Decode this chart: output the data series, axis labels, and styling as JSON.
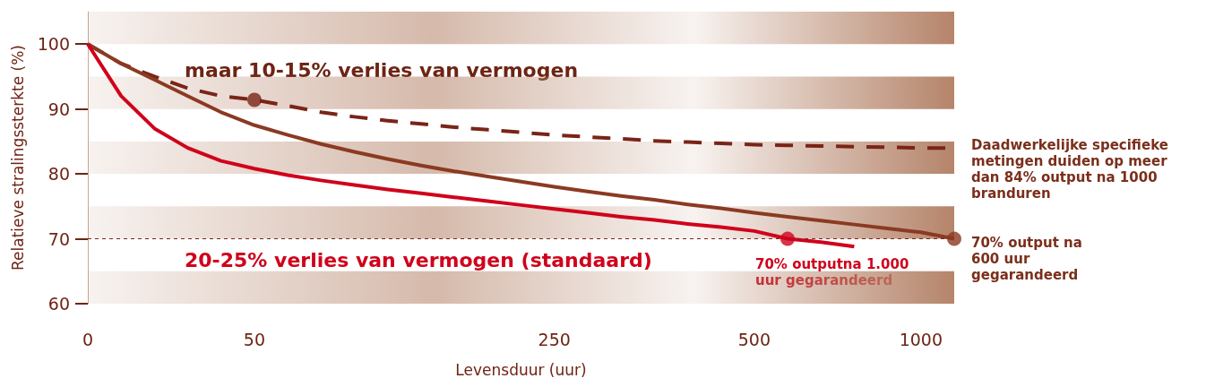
{
  "chart_data": {
    "type": "line",
    "xlabel": "Levensduur (uur)",
    "ylabel": "Relatieve stralingssterkte (%)",
    "categories": [
      "0",
      null,
      null,
      null,
      null,
      "50",
      null,
      null,
      null,
      null,
      null,
      null,
      null,
      null,
      "250",
      null,
      null,
      null,
      null,
      null,
      "500",
      null,
      null,
      null,
      null,
      "1000",
      null
    ],
    "ylim": [
      60,
      105
    ],
    "yticks": [
      60,
      70,
      80,
      90,
      100
    ],
    "grid": false,
    "marker": "none",
    "series": [
      {
        "color": "#7a2418",
        "line_style": "dashed",
        "values": [
          100,
          97,
          95,
          93.2,
          92,
          91.4,
          90.5,
          89.5,
          88.8,
          88.2,
          87.7,
          87.2,
          86.8,
          86.4,
          86,
          85.7,
          85.4,
          85.1,
          84.9,
          84.7,
          84.5,
          84.4,
          84.3,
          84.2,
          84.1,
          84,
          84
        ]
      },
      {
        "color": "#8b3a22",
        "line_style": "solid",
        "values": [
          100,
          97,
          94.5,
          92,
          89.5,
          87.5,
          86,
          84.6,
          83.4,
          82.3,
          81.3,
          80.4,
          79.6,
          78.8,
          78,
          77.3,
          76.6,
          76,
          75.3,
          74.7,
          74,
          73.4,
          72.8,
          72.2,
          71.6,
          71,
          70
        ]
      },
      {
        "color": "#d0021b",
        "line_style": "solid",
        "values": [
          100,
          92,
          87,
          84,
          82,
          80.8,
          79.8,
          79,
          78.3,
          77.6,
          77,
          76.4,
          75.8,
          75.2,
          74.6,
          74,
          73.4,
          72.9,
          72.3,
          71.8,
          71.2,
          70,
          69.5,
          68.8,
          null,
          null,
          null
        ]
      },
      {
        "type": "scatter",
        "color": "#7a2418",
        "marker": "circle",
        "values": [
          null,
          null,
          null,
          null,
          null,
          91.4,
          null,
          null,
          null,
          null,
          null,
          null,
          null,
          null,
          null,
          null,
          null,
          null,
          null,
          null,
          null,
          null,
          null,
          null,
          null,
          null,
          null
        ]
      },
      {
        "type": "scatter",
        "color": "#d0021b",
        "marker": "circle",
        "values": [
          null,
          null,
          null,
          null,
          null,
          null,
          null,
          null,
          null,
          null,
          null,
          null,
          null,
          null,
          null,
          null,
          null,
          null,
          null,
          null,
          null,
          70,
          null,
          null,
          null,
          null,
          null
        ]
      },
      {
        "type": "scatter",
        "color": "#8b3a22",
        "marker": "circle",
        "values": [
          null,
          null,
          null,
          null,
          null,
          null,
          null,
          null,
          null,
          null,
          null,
          null,
          null,
          null,
          null,
          null,
          null,
          null,
          null,
          null,
          null,
          null,
          null,
          null,
          null,
          null,
          70
        ]
      }
    ],
    "ref_lines": [
      {
        "axis": "y",
        "value": 70,
        "color": "#7a2418",
        "line_style": "dashed"
      }
    ],
    "bands": [
      {
        "axis": "y",
        "from": 100,
        "to": 105,
        "color": "#b5846a"
      },
      {
        "axis": "y",
        "from": 90,
        "to": 95,
        "color": "#b5846a"
      },
      {
        "axis": "y",
        "from": 80,
        "to": 85,
        "color": "#b5846a"
      },
      {
        "axis": "y",
        "from": 70,
        "to": 75,
        "color": "#b5846a"
      },
      {
        "axis": "y",
        "from": 60,
        "to": 65,
        "color": "#b5846a"
      }
    ],
    "annotations": [
      "maar 10-15% verlies van vermogen",
      "20-25% verlies van vermogen (standaard)",
      "70% outputna 1.000 uur gegarandeerd",
      "Daadwerkelijke specifieke metingen duiden op meer dan 84% output na 1000 branduren",
      "70% output na 600 uur gegarandeerd"
    ]
  }
}
